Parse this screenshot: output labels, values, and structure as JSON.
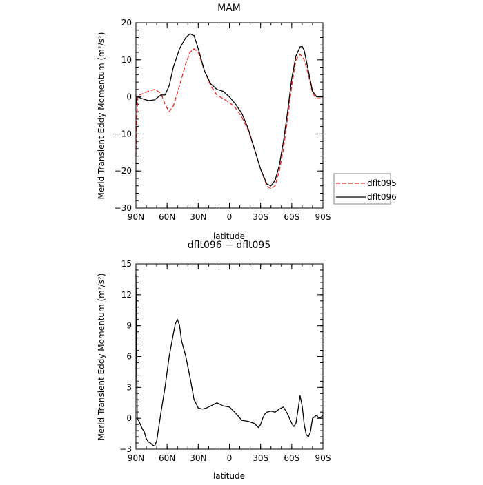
{
  "chart_data": [
    {
      "type": "line",
      "title": "MAM",
      "xlabel": "latitude",
      "ylabel": "Merid Transient Eddy Momentum (m²/s²)",
      "xlim": [
        90,
        -90
      ],
      "ylim": [
        -30,
        20
      ],
      "xticks": [
        90,
        60,
        30,
        0,
        -30,
        -60,
        -90
      ],
      "xtick_labels": [
        "90N",
        "60N",
        "30N",
        "0",
        "30S",
        "60S",
        "90S"
      ],
      "yticks": [
        -30,
        -20,
        -10,
        0,
        10,
        20
      ],
      "ytick_labels": [
        "−30",
        "−20",
        "−10",
        "0",
        "10",
        "20"
      ],
      "legend_position": "right",
      "series": [
        {
          "name": "dflt095",
          "color": "#e8231f",
          "dash": true,
          "x": [
            90,
            89,
            88,
            84,
            78,
            72,
            66,
            62,
            58,
            54,
            48,
            42,
            38,
            34,
            30,
            24,
            18,
            12,
            6,
            0,
            -6,
            -12,
            -18,
            -24,
            -30,
            -36,
            -40,
            -44,
            -48,
            -52,
            -56,
            -60,
            -64,
            -68,
            -72,
            -76,
            -80,
            -84,
            -88,
            -90
          ],
          "y": [
            -16,
            -4,
            0.3,
            0.8,
            1.5,
            2,
            1,
            -2,
            -4,
            -2.5,
            3,
            9,
            12,
            13,
            12,
            7,
            3,
            0.5,
            -0.5,
            -1.5,
            -3,
            -5.5,
            -9,
            -14,
            -19.5,
            -24,
            -24.8,
            -24,
            -20,
            -14,
            -6,
            3,
            10,
            11.5,
            10,
            6,
            1,
            -0.5,
            -0.5,
            -0.5
          ]
        },
        {
          "name": "dflt096",
          "color": "#000000",
          "dash": false,
          "x": [
            90,
            89,
            88,
            84,
            78,
            72,
            66,
            62,
            58,
            54,
            48,
            42,
            38,
            34,
            30,
            24,
            18,
            12,
            6,
            0,
            -6,
            -12,
            -18,
            -24,
            -30,
            -36,
            -40,
            -44,
            -48,
            -52,
            -56,
            -60,
            -64,
            -68,
            -70,
            -72,
            -76,
            -80,
            -84,
            -88,
            -90
          ],
          "y": [
            -2,
            0,
            0,
            -0.5,
            -1,
            -0.8,
            0.5,
            0.5,
            3,
            8,
            13,
            16,
            17,
            16.5,
            13,
            7,
            3.5,
            2,
            1.5,
            0,
            -2,
            -4.5,
            -8.5,
            -14,
            -19.5,
            -23.5,
            -24,
            -22.5,
            -18.5,
            -12,
            -4,
            5,
            11,
            13.5,
            13.6,
            12.5,
            7,
            1.5,
            0,
            0,
            0
          ]
        }
      ]
    },
    {
      "type": "line",
      "title": "dflt096 − dflt095",
      "xlabel": "latitude",
      "ylabel": "Merid Transient Eddy Momentum (m²/s²)",
      "xlim": [
        90,
        -90
      ],
      "ylim": [
        -3,
        15
      ],
      "xticks": [
        90,
        60,
        30,
        0,
        -30,
        -60,
        -90
      ],
      "xtick_labels": [
        "90N",
        "60N",
        "30N",
        "0",
        "30S",
        "60S",
        "90S"
      ],
      "yticks": [
        -3,
        0,
        3,
        6,
        9,
        12,
        15
      ],
      "ytick_labels": [
        "−3",
        "0",
        "3",
        "6",
        "9",
        "12",
        "15"
      ],
      "series": [
        {
          "color": "#000000",
          "dash": false,
          "x": [
            90,
            89.4,
            88.8,
            87,
            84,
            82,
            80,
            78,
            76,
            74,
            72,
            70,
            66,
            62,
            58,
            54,
            52,
            50,
            48,
            46,
            42,
            38,
            34,
            30,
            26,
            22,
            18,
            12,
            6,
            0,
            -6,
            -12,
            -18,
            -24,
            -28,
            -30,
            -32,
            -34,
            -36,
            -40,
            -44,
            -48,
            -52,
            -56,
            -60,
            -62,
            -64,
            -66,
            -68,
            -70,
            -72,
            -74,
            -76,
            -78,
            -80,
            -84,
            -86,
            -88,
            -90
          ],
          "y": [
            14,
            8,
            0,
            -0.3,
            -1,
            -1.3,
            -2,
            -2.3,
            -2.4,
            -2.6,
            -2.7,
            -2.2,
            0.5,
            3,
            6,
            8.2,
            9.2,
            9.6,
            9,
            7.5,
            6,
            4,
            1.8,
            1,
            0.9,
            1,
            1.2,
            1.5,
            1.2,
            1.1,
            0.5,
            -0.2,
            -0.3,
            -0.5,
            -0.9,
            -0.6,
            0,
            0.4,
            0.6,
            0.7,
            0.6,
            0.9,
            1.1,
            0.4,
            -0.5,
            -0.8,
            -0.5,
            0.8,
            2.2,
            1.2,
            -0.6,
            -1.6,
            -1.8,
            -1.3,
            0,
            0.3,
            0,
            0.1,
            0.3
          ]
        }
      ]
    }
  ]
}
